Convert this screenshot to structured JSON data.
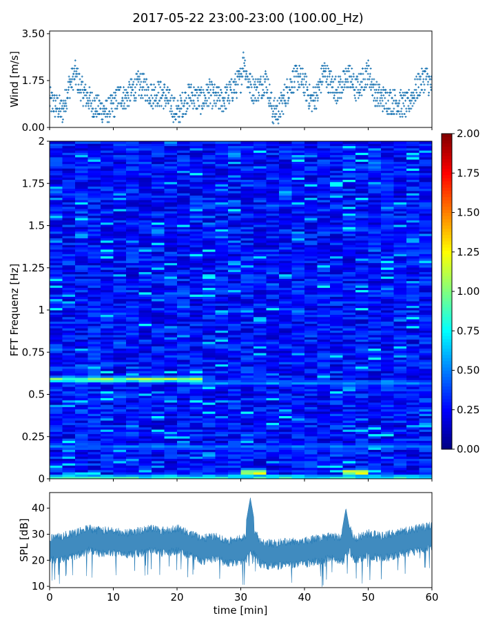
{
  "figure": {
    "title": "2017-05-22 23:00-23:00 (100.00_Hz)"
  },
  "chart_data": [
    {
      "type": "scatter",
      "panel": "wind",
      "xlabel": "",
      "ylabel": "Wind [m/s]",
      "xlim": [
        0,
        60
      ],
      "ylim": [
        0,
        3.6
      ],
      "yticks": [
        "0.00",
        "1.75",
        "3.50"
      ],
      "ytick_values": [
        0,
        1.75,
        3.5
      ],
      "marker_color": "#1f77b4",
      "trend": [
        [
          0,
          1.0
        ],
        [
          1,
          0.8
        ],
        [
          2,
          0.6
        ],
        [
          3,
          1.5
        ],
        [
          4,
          2.0
        ],
        [
          5,
          1.4
        ],
        [
          6,
          1.1
        ],
        [
          7,
          0.8
        ],
        [
          8,
          0.7
        ],
        [
          9,
          0.6
        ],
        [
          10,
          0.8
        ],
        [
          11,
          1.2
        ],
        [
          12,
          1.1
        ],
        [
          13,
          1.4
        ],
        [
          14,
          1.6
        ],
        [
          15,
          1.5
        ],
        [
          16,
          1.2
        ],
        [
          17,
          1.3
        ],
        [
          18,
          1.2
        ],
        [
          19,
          0.9
        ],
        [
          20,
          0.5
        ],
        [
          21,
          0.9
        ],
        [
          22,
          1.2
        ],
        [
          23,
          1.1
        ],
        [
          24,
          1.0
        ],
        [
          25,
          1.3
        ],
        [
          26,
          1.1
        ],
        [
          27,
          1.0
        ],
        [
          28,
          1.2
        ],
        [
          29,
          1.5
        ],
        [
          30,
          1.8
        ],
        [
          30.5,
          2.6
        ],
        [
          31,
          1.8
        ],
        [
          32,
          1.4
        ],
        [
          33,
          1.5
        ],
        [
          34,
          1.8
        ],
        [
          35,
          0.6
        ],
        [
          36,
          0.6
        ],
        [
          37,
          1.2
        ],
        [
          38,
          1.7
        ],
        [
          39,
          1.9
        ],
        [
          40,
          1.6
        ],
        [
          41,
          1.0
        ],
        [
          42,
          1.2
        ],
        [
          43,
          2.1
        ],
        [
          44,
          1.7
        ],
        [
          45,
          1.4
        ],
        [
          46,
          1.6
        ],
        [
          47,
          2.0
        ],
        [
          48,
          1.4
        ],
        [
          49,
          1.7
        ],
        [
          50,
          2.1
        ],
        [
          51,
          1.3
        ],
        [
          52,
          1.1
        ],
        [
          53,
          1.0
        ],
        [
          54,
          1.0
        ],
        [
          55,
          0.9
        ],
        [
          56,
          0.8
        ],
        [
          57,
          1.2
        ],
        [
          58,
          1.6
        ],
        [
          59,
          1.9
        ],
        [
          60,
          1.5
        ]
      ]
    },
    {
      "type": "heatmap",
      "panel": "spectrogram",
      "xlabel": "",
      "ylabel": "FFT Frequenz [Hz]",
      "xlim": [
        0,
        60
      ],
      "ylim": [
        0,
        2
      ],
      "yticks": [
        "0",
        "0.25",
        "0.5",
        "0.75",
        "1",
        "1.25",
        "1.5",
        "1.75",
        "2"
      ],
      "ytick_values": [
        0,
        0.25,
        0.5,
        0.75,
        1,
        1.25,
        1.5,
        1.75,
        2
      ],
      "colormap": "jet",
      "clim": [
        0,
        2
      ],
      "colorbar_ticks": [
        "0.00",
        "0.25",
        "0.50",
        "0.75",
        "1.00",
        "1.25",
        "1.50",
        "1.75",
        "2.00"
      ],
      "colorbar_values": [
        0,
        0.25,
        0.5,
        0.75,
        1,
        1.25,
        1.5,
        1.75,
        2
      ],
      "background_level": 0.3,
      "bands": [
        {
          "f": 0.59,
          "t0": 0,
          "t1": 23,
          "level": 1.15
        },
        {
          "f": 0.57,
          "t0": 23,
          "t1": 60,
          "level": 0.6
        },
        {
          "f": 0.19,
          "t0": 0,
          "t1": 60,
          "level": 0.55
        },
        {
          "f": 0.01,
          "t0": 0,
          "t1": 60,
          "level": 0.9
        },
        {
          "f": 0.04,
          "t0": 31,
          "t1": 34,
          "level": 1.45
        },
        {
          "f": 0.04,
          "t0": 45.5,
          "t1": 50,
          "level": 1.4
        }
      ]
    },
    {
      "type": "area",
      "panel": "spl",
      "xlabel": "time [min]",
      "ylabel": "SPL [dB]",
      "xlim": [
        0,
        60
      ],
      "ylim": [
        9.5,
        46
      ],
      "xticks": [
        "0",
        "10",
        "20",
        "30",
        "40",
        "50",
        "60"
      ],
      "xtick_values": [
        0,
        10,
        20,
        30,
        40,
        50,
        60
      ],
      "yticks": [
        "10",
        "20",
        "30",
        "40"
      ],
      "ytick_values": [
        10,
        20,
        30,
        40
      ],
      "color": "#1f77b4",
      "mean": [
        [
          0,
          24
        ],
        [
          2,
          25
        ],
        [
          4,
          26
        ],
        [
          5,
          27
        ],
        [
          6,
          28
        ],
        [
          8,
          27
        ],
        [
          10,
          27
        ],
        [
          12,
          26
        ],
        [
          14,
          27
        ],
        [
          16,
          28
        ],
        [
          18,
          27
        ],
        [
          20,
          28
        ],
        [
          22,
          26
        ],
        [
          24,
          24
        ],
        [
          26,
          25
        ],
        [
          28,
          23
        ],
        [
          30,
          24
        ],
        [
          31,
          25
        ],
        [
          32,
          28
        ],
        [
          33,
          23
        ],
        [
          35,
          22
        ],
        [
          38,
          23
        ],
        [
          40,
          23
        ],
        [
          42,
          24
        ],
        [
          44,
          25
        ],
        [
          46,
          24
        ],
        [
          47,
          28
        ],
        [
          48,
          24
        ],
        [
          50,
          26
        ],
        [
          52,
          25
        ],
        [
          54,
          26
        ],
        [
          56,
          27
        ],
        [
          58,
          28
        ],
        [
          60,
          29
        ]
      ],
      "spread": [
        [
          0,
          6
        ],
        [
          10,
          6
        ],
        [
          20,
          6
        ],
        [
          30,
          6
        ],
        [
          40,
          6
        ],
        [
          50,
          6
        ],
        [
          60,
          6
        ]
      ],
      "peaks": [
        [
          31.5,
          44
        ],
        [
          46.5,
          40
        ]
      ]
    }
  ]
}
